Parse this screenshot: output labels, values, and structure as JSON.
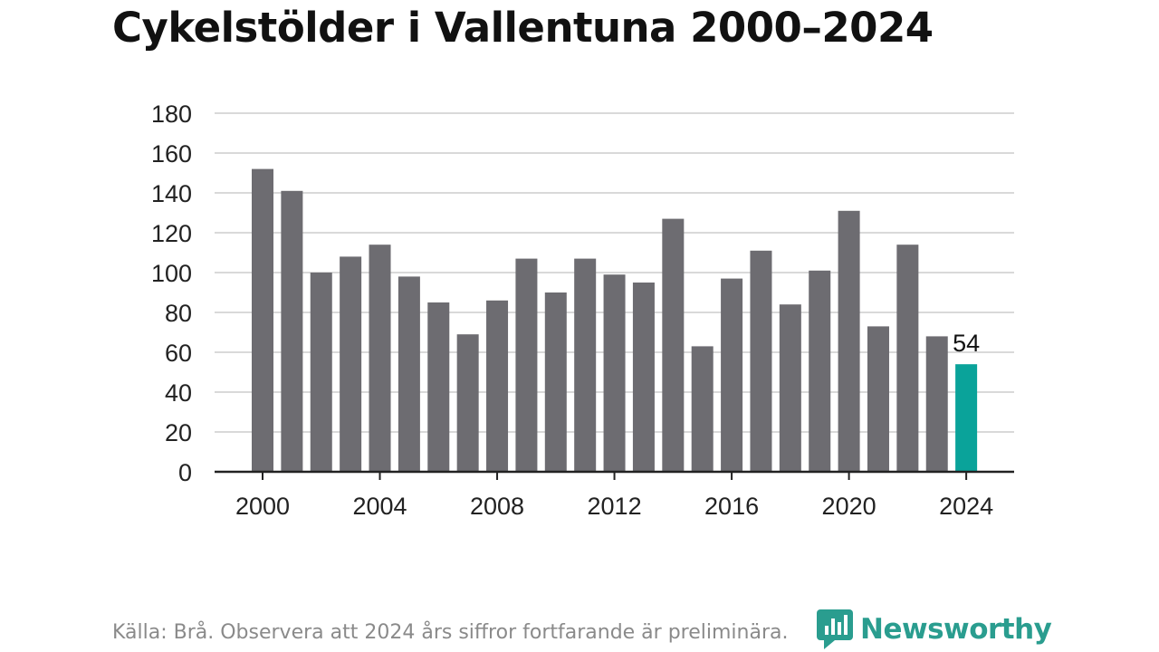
{
  "title": "Cykelstölder i Vallentuna 2000–2024",
  "source": "Källa: Brå. Observera att 2024 års siffror fortfarande är preliminära.",
  "logo_text": "Newsworthy",
  "colors": {
    "bar": "#6d6c71",
    "highlight": "#0aa39a",
    "grid": "#d9d9d9",
    "axis": "#222222",
    "brand": "#2a9d8f"
  },
  "chart_data": {
    "type": "bar",
    "title": "Cykelstölder i Vallentuna 2000–2024",
    "xlabel": "",
    "ylabel": "",
    "categories": [
      "2000",
      "2001",
      "2002",
      "2003",
      "2004",
      "2005",
      "2006",
      "2007",
      "2008",
      "2009",
      "2010",
      "2011",
      "2012",
      "2013",
      "2014",
      "2015",
      "2016",
      "2017",
      "2018",
      "2019",
      "2020",
      "2021",
      "2022",
      "2023",
      "2024"
    ],
    "values": [
      152,
      141,
      100,
      108,
      114,
      98,
      85,
      69,
      86,
      107,
      90,
      107,
      99,
      95,
      127,
      63,
      97,
      111,
      84,
      101,
      131,
      73,
      114,
      68,
      54
    ],
    "ylim": [
      0,
      180
    ],
    "yticks": [
      0,
      20,
      40,
      60,
      80,
      100,
      120,
      140,
      160,
      180
    ],
    "xticks": [
      "2000",
      "2004",
      "2008",
      "2012",
      "2016",
      "2020",
      "2024"
    ],
    "highlight_category": "2024",
    "data_labels": [
      {
        "category": "2024",
        "text": "54"
      }
    ],
    "grid": true,
    "legend": "none"
  }
}
